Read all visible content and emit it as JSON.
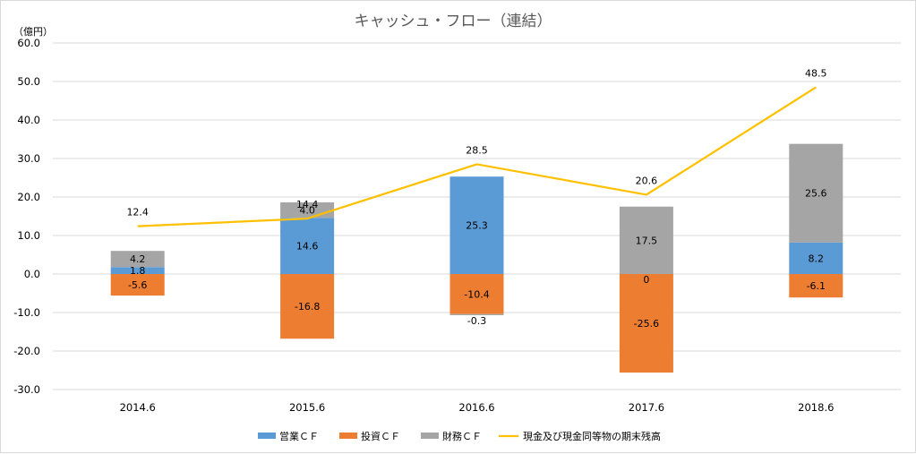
{
  "chart_data": {
    "type": "bar",
    "title": "キャッシュ・フロー（連結）",
    "ylabel": "（億円）",
    "ylim": [
      -30,
      60
    ],
    "yticks": [
      "60.0",
      "50.0",
      "40.0",
      "30.0",
      "20.0",
      "10.0",
      "0.0",
      "-10.0",
      "-20.0",
      "-30.0"
    ],
    "ytick_values": [
      60,
      50,
      40,
      30,
      20,
      10,
      0,
      -10,
      -20,
      -30
    ],
    "categories": [
      "2014.6",
      "2015.6",
      "2016.6",
      "2017.6",
      "2018.6"
    ],
    "grid": true,
    "legend_position": "bottom",
    "series": [
      {
        "name": "営業ＣＦ",
        "kind": "bar",
        "color": "#5b9bd5",
        "values": [
          1.8,
          14.6,
          25.3,
          0,
          8.2
        ],
        "labels": [
          "1.8",
          "14.6",
          "25.3",
          "0",
          "8.2"
        ]
      },
      {
        "name": "投資ＣＦ",
        "kind": "bar",
        "color": "#ed7d31",
        "values": [
          -5.6,
          -16.8,
          -10.4,
          -25.6,
          -6.1
        ],
        "labels": [
          "-5.6",
          "-16.8",
          "-10.4",
          "-25.6",
          "-6.1"
        ]
      },
      {
        "name": "財務ＣＦ",
        "kind": "bar",
        "color": "#a5a5a5",
        "values": [
          4.2,
          4.0,
          -0.3,
          17.5,
          25.6
        ],
        "labels": [
          "4.2",
          "4.0",
          "-0.3",
          "17.5",
          "25.6"
        ]
      },
      {
        "name": "現金及び現金同等物の期末残高",
        "kind": "line",
        "color": "#ffc000",
        "values": [
          12.4,
          14.4,
          28.5,
          20.6,
          48.5
        ],
        "labels": [
          "12.4",
          "14.4",
          "28.5",
          "20.6",
          "48.5"
        ]
      }
    ]
  }
}
